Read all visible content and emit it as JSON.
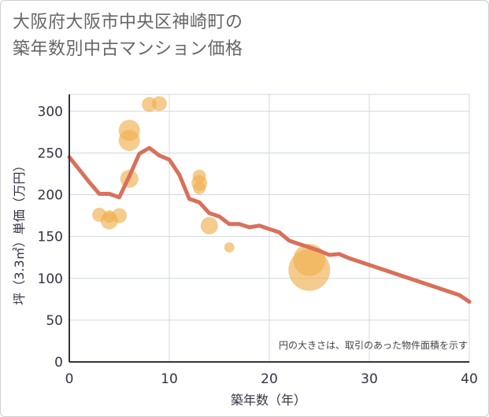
{
  "chart_data": {
    "type": "scatter",
    "title_lines": [
      "大阪府大阪市中央区神崎町の",
      "築年数別中古マンション価格"
    ],
    "xlabel": "築年数（年）",
    "ylabel": "坪（3.3㎡）単価（万円）",
    "xlim": [
      0,
      40
    ],
    "ylim": [
      0,
      320
    ],
    "xticks": [
      "0",
      "10",
      "20",
      "30",
      "40"
    ],
    "yticks": [
      "0",
      "50",
      "100",
      "150",
      "200",
      "250",
      "300"
    ],
    "note": "円の大きさは、取引のあった物件面積を示す",
    "grid": true,
    "colors": {
      "bubble": "#f0b050",
      "line": "#d9705a",
      "grid": "#d0d8e0",
      "axis": "#333344"
    },
    "bubbles": [
      {
        "x": 3,
        "y": 176,
        "size": 1.0
      },
      {
        "x": 4,
        "y": 174,
        "size": 0.8
      },
      {
        "x": 4,
        "y": 169,
        "size": 1.4
      },
      {
        "x": 5,
        "y": 175,
        "size": 1.1
      },
      {
        "x": 6,
        "y": 277,
        "size": 1.9
      },
      {
        "x": 6,
        "y": 265,
        "size": 1.9
      },
      {
        "x": 6,
        "y": 219,
        "size": 1.5
      },
      {
        "x": 8,
        "y": 308,
        "size": 1.1
      },
      {
        "x": 9,
        "y": 309,
        "size": 1.1
      },
      {
        "x": 13,
        "y": 222,
        "size": 0.9
      },
      {
        "x": 13,
        "y": 214,
        "size": 1.2
      },
      {
        "x": 13,
        "y": 208,
        "size": 0.8
      },
      {
        "x": 14,
        "y": 163,
        "size": 1.4
      },
      {
        "x": 16,
        "y": 137,
        "size": 0.5
      },
      {
        "x": 24,
        "y": 122,
        "size": 3.3
      },
      {
        "x": 24,
        "y": 110,
        "size": 4.5
      }
    ],
    "line": {
      "x": [
        0,
        1,
        2,
        3,
        4,
        5,
        6,
        7,
        8,
        9,
        10,
        11,
        12,
        13,
        14,
        15,
        16,
        17,
        18,
        19,
        20,
        21,
        22,
        23,
        24,
        25,
        26,
        27,
        28,
        29,
        30,
        31,
        32,
        33,
        34,
        35,
        36,
        37,
        38,
        39,
        40
      ],
      "y": [
        245,
        230,
        215,
        201,
        201,
        197,
        222,
        249,
        256,
        247,
        242,
        224,
        195,
        191,
        178,
        174,
        165,
        165,
        161,
        163,
        159,
        155,
        145,
        141,
        137,
        133,
        128,
        129,
        124,
        120,
        116,
        112,
        108,
        104,
        100,
        96,
        92,
        88,
        84,
        80,
        72
      ]
    }
  }
}
